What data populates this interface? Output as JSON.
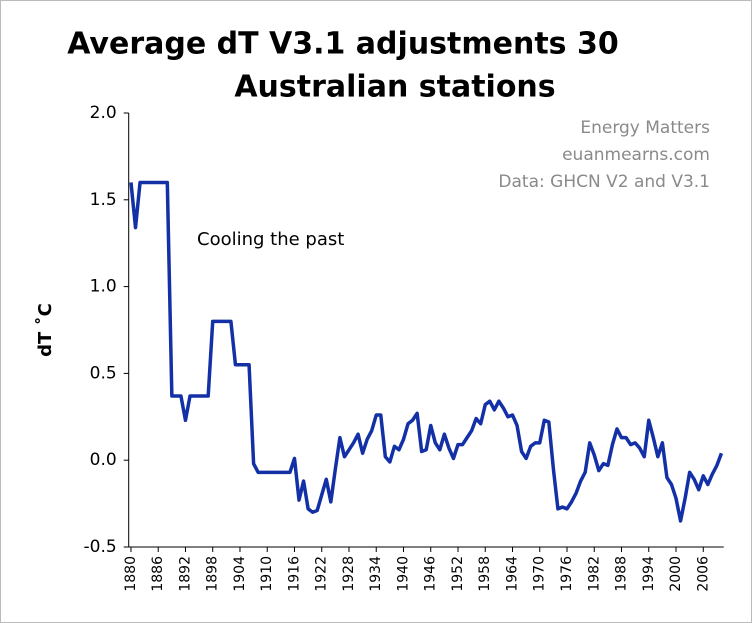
{
  "chart_data": {
    "type": "line",
    "title": [
      "Average dT V3.1 adjustments 30",
      "Australian stations"
    ],
    "ylabel": "dT ˚C",
    "annotations": [
      "Cooling the past",
      "Energy Matters",
      "euanmearns.com",
      "Data: GHCN V2 and V3.1"
    ],
    "color": "#1330a6",
    "x": [
      1880,
      1881,
      1882,
      1883,
      1884,
      1885,
      1886,
      1887,
      1888,
      1889,
      1890,
      1891,
      1892,
      1893,
      1894,
      1895,
      1896,
      1897,
      1898,
      1899,
      1900,
      1901,
      1902,
      1903,
      1904,
      1905,
      1906,
      1907,
      1908,
      1909,
      1910,
      1911,
      1912,
      1913,
      1914,
      1915,
      1916,
      1917,
      1918,
      1919,
      1920,
      1921,
      1922,
      1923,
      1924,
      1925,
      1926,
      1927,
      1928,
      1929,
      1930,
      1931,
      1932,
      1933,
      1934,
      1935,
      1936,
      1937,
      1938,
      1939,
      1940,
      1941,
      1942,
      1943,
      1944,
      1945,
      1946,
      1947,
      1948,
      1949,
      1950,
      1951,
      1952,
      1953,
      1954,
      1955,
      1956,
      1957,
      1958,
      1959,
      1960,
      1961,
      1962,
      1963,
      1964,
      1965,
      1966,
      1967,
      1968,
      1969,
      1970,
      1971,
      1972,
      1973,
      1974,
      1975,
      1976,
      1977,
      1978,
      1979,
      1980,
      1981,
      1982,
      1983,
      1984,
      1985,
      1986,
      1987,
      1988,
      1989,
      1990,
      1991,
      1992,
      1993,
      1994,
      1995,
      1996,
      1997,
      1998,
      1999,
      2000,
      2001,
      2002,
      2003,
      2004,
      2005,
      2006,
      2007,
      2008,
      2009,
      2010
    ],
    "values": [
      1.6,
      1.34,
      1.6,
      1.6,
      1.6,
      1.6,
      1.6,
      1.6,
      1.6,
      0.37,
      0.37,
      0.37,
      0.23,
      0.37,
      0.37,
      0.37,
      0.37,
      0.37,
      0.8,
      0.8,
      0.8,
      0.8,
      0.8,
      0.55,
      0.55,
      0.55,
      0.55,
      -0.02,
      -0.07,
      -0.07,
      -0.07,
      -0.07,
      -0.07,
      -0.07,
      -0.07,
      -0.07,
      0.01,
      -0.23,
      -0.12,
      -0.28,
      -0.3,
      -0.29,
      -0.2,
      -0.11,
      -0.24,
      -0.05,
      0.13,
      0.02,
      0.06,
      0.1,
      0.15,
      0.04,
      0.12,
      0.17,
      0.26,
      0.26,
      0.02,
      -0.01,
      0.08,
      0.06,
      0.12,
      0.21,
      0.23,
      0.27,
      0.05,
      0.06,
      0.2,
      0.1,
      0.06,
      0.15,
      0.07,
      0.01,
      0.09,
      0.09,
      0.13,
      0.17,
      0.24,
      0.21,
      0.32,
      0.34,
      0.29,
      0.34,
      0.3,
      0.25,
      0.26,
      0.2,
      0.05,
      0.01,
      0.08,
      0.1,
      0.1,
      0.23,
      0.22,
      -0.05,
      -0.28,
      -0.27,
      -0.28,
      -0.24,
      -0.19,
      -0.12,
      -0.07,
      0.1,
      0.03,
      -0.06,
      -0.02,
      -0.03,
      0.09,
      0.18,
      0.13,
      0.13,
      0.09,
      0.1,
      0.07,
      0.02,
      0.23,
      0.13,
      0.02,
      0.1,
      -0.1,
      -0.14,
      -0.22,
      -0.35,
      -0.22,
      -0.07,
      -0.11,
      -0.17,
      -0.09,
      -0.14,
      -0.08,
      -0.03,
      0.04
    ],
    "xlim": [
      1879.5,
      2010.5
    ],
    "xticks": [
      1880,
      1886,
      1892,
      1898,
      1904,
      1910,
      1916,
      1922,
      1928,
      1934,
      1940,
      1946,
      1952,
      1958,
      1964,
      1970,
      1976,
      1982,
      1988,
      1994,
      2000,
      2006
    ],
    "ylim": [
      -0.5,
      2.0
    ],
    "yticks": [
      {
        "value": 2.0,
        "label": "2.0"
      },
      1.5,
      {
        "value": 1.0,
        "label": "1.0"
      },
      0.5,
      {
        "value": 0.0,
        "label": "0.0"
      },
      -0.5
    ],
    "grid": false
  }
}
